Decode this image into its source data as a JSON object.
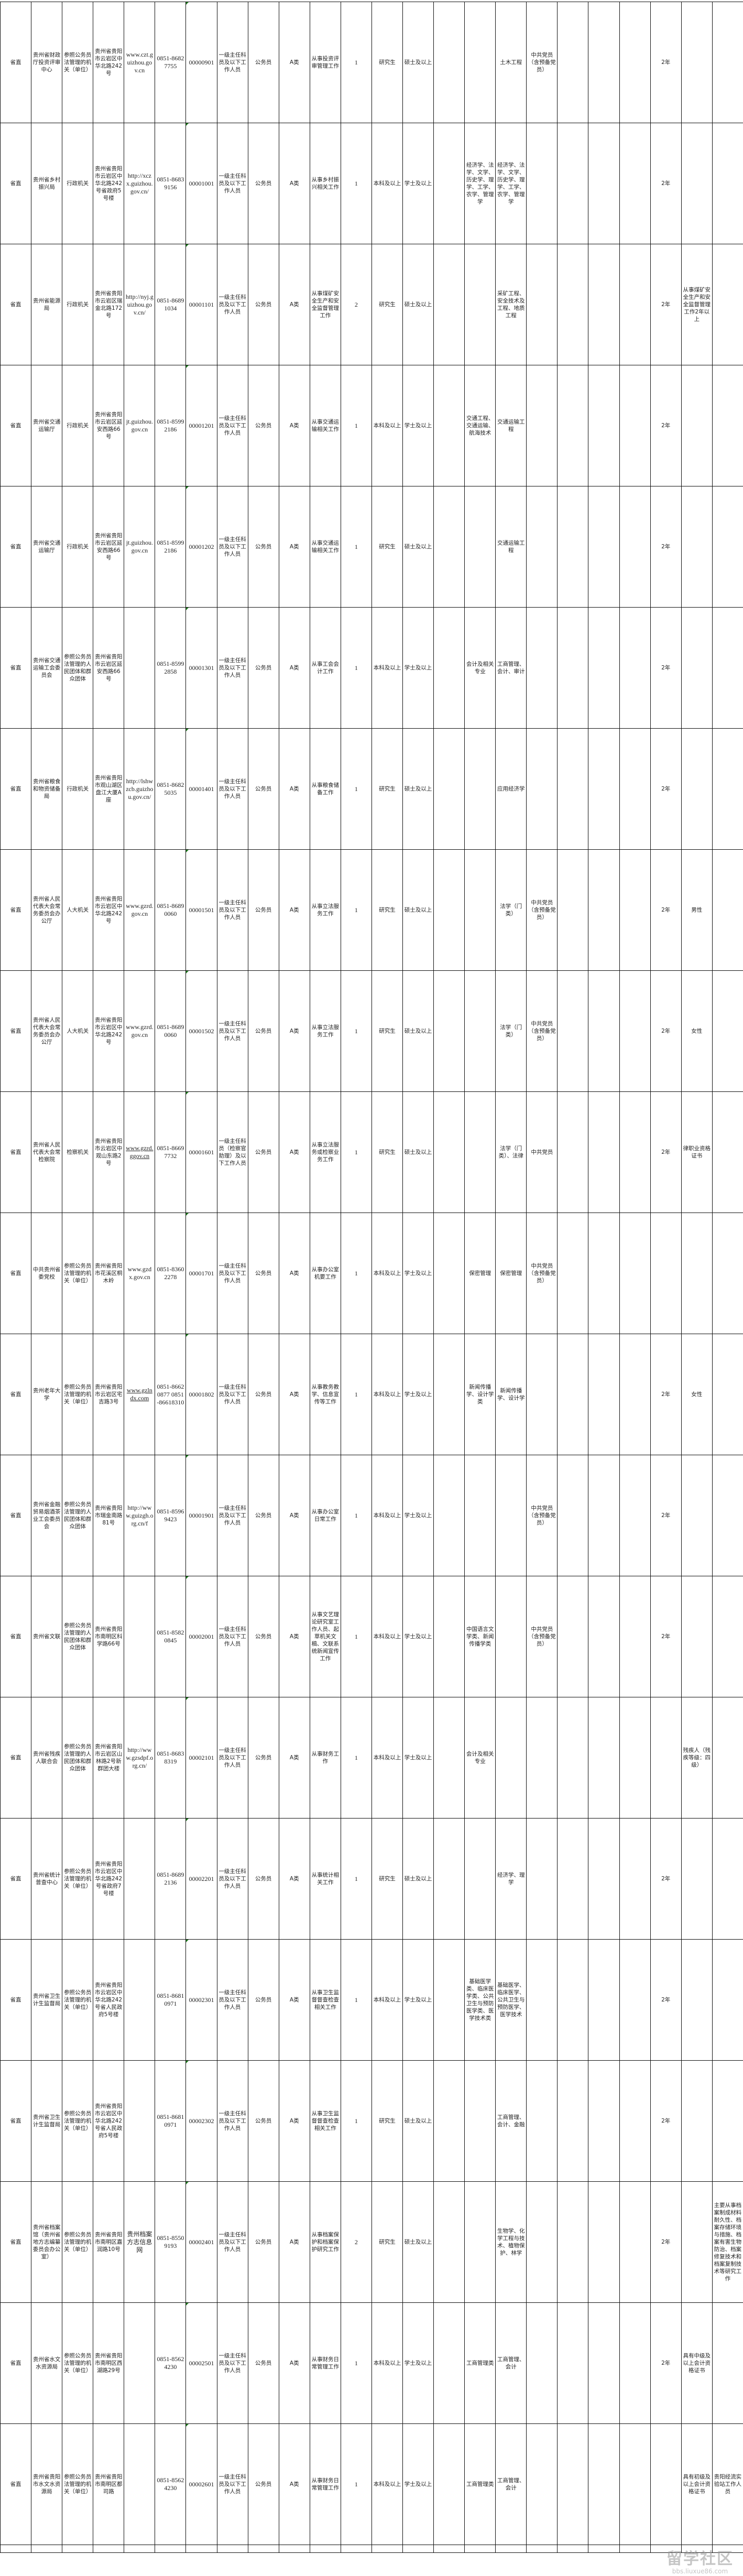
{
  "rows": [
    [
      "省直",
      "贵州省财政厅投资评审中心",
      "参照公务员法管理的机关（单位）",
      "贵州省贵阳市云岩区中华北路242号",
      "www.czt.guizhou.gov.cn",
      "0851-86827755",
      "00000901",
      "一级主任科员及以下工作人员",
      "公务员",
      "A类",
      "从事投资评审管理工作",
      "1",
      "研究生",
      "硕士及以上",
      "",
      "",
      "土木工程",
      "中共党员（含预备党员）",
      "",
      "",
      "",
      "2年",
      "",
      ""
    ],
    [
      "省直",
      "贵州省乡村振兴局",
      "行政机关",
      "贵州省贵阳市云岩区中华北路242号省政府5号楼",
      "http://xczx.guizhou.gov.cn/",
      "0851-86839156",
      "00001001",
      "一级主任科员及以下工作人员",
      "公务员",
      "A类",
      "从事乡村振兴相关工作",
      "1",
      "本科及以上",
      "学士及以上",
      "",
      "经济学、法学、文学、历史学、理学、工学、农学、管理学",
      "经济学、法学、文学、历史学、理学、工学、农学、管理学",
      "",
      "",
      "",
      "",
      "2年",
      "",
      ""
    ],
    [
      "省直",
      "贵州省能源局",
      "行政机关",
      "贵州省贵阳市云岩区瑞金北路172号",
      "http://nyj.guizhou.gov.cn/",
      "0851-86891034",
      "00001101",
      "一级主任科员及以下工作人员",
      "公务员",
      "A类",
      "从事煤矿安全生产和安全监督管理工作",
      "2",
      "研究生",
      "硕士及以上",
      "",
      "",
      "采矿工程、安全技术及工程、地质工程",
      "",
      "",
      "",
      "",
      "2年",
      "从事煤矿安全生产和安全监督管理工作2年以上",
      ""
    ],
    [
      "省直",
      "贵州省交通运输厅",
      "行政机关",
      "贵州省贵阳市云岩区延安西路66号",
      "jt.guizhou.gov.cn",
      "0851-85992186",
      "00001201",
      "一级主任科员及以下工作人员",
      "公务员",
      "A类",
      "从事交通运输相关工作",
      "1",
      "本科及以上",
      "学士及以上",
      "",
      "交通工程、交通运输、航海技术",
      "交通运输工程",
      "",
      "",
      "",
      "",
      "2年",
      "",
      ""
    ],
    [
      "省直",
      "贵州省交通运输厅",
      "行政机关",
      "贵州省贵阳市云岩区延安西路66号",
      "jt.guizhou.gov.cn",
      "0851-85992186",
      "00001202",
      "一级主任科员及以下工作人员",
      "公务员",
      "A类",
      "从事交通运输相关工作",
      "1",
      "研究生",
      "硕士及以上",
      "",
      "",
      "交通运输工程",
      "",
      "",
      "",
      "",
      "2年",
      "",
      ""
    ],
    [
      "省直",
      "贵州省交通运输工会委员会",
      "参照公务员法管理的人民团体和群众团体",
      "贵州省贵阳市云岩区延安西路66号",
      "",
      "0851-85992858",
      "00001301",
      "一级主任科员及以下工作人员",
      "公务员",
      "A类",
      "从事工会会计工作",
      "1",
      "本科及以上",
      "学士及以上",
      "",
      "会计及相关专业",
      "工商管理、会计、审计",
      "",
      "",
      "",
      "",
      "2年",
      "",
      ""
    ],
    [
      "省直",
      "贵州省粮食和物资储备局",
      "行政机关",
      "贵州省贵阳市观山湖区盘江大厦A座",
      "http://lshwzcb.guizhou.gov.cn/",
      "0851-86825035",
      "00001401",
      "一级主任科员及以下工作人员",
      "公务员",
      "A类",
      "从事粮食储备工作",
      "1",
      "研究生",
      "硕士及以上",
      "",
      "",
      "应用经济学",
      "",
      "",
      "",
      "",
      "2年",
      "",
      ""
    ],
    [
      "省直",
      "贵州省人民代表大会常务委员会办公厅",
      "人大机关",
      "贵州省贵阳市云岩区中华北路242号",
      "www.gzrd.gov.cn",
      "0851-86890060",
      "00001501",
      "一级主任科员及以下工作人员",
      "公务员",
      "A类",
      "从事立法服务工作",
      "1",
      "研究生",
      "硕士及以上",
      "",
      "",
      "法学（门类）",
      "中共党员（含预备党员）",
      "",
      "",
      "",
      "2年",
      "男性",
      ""
    ],
    [
      "省直",
      "贵州省人民代表大会常务委员会办公厅",
      "人大机关",
      "贵州省贵阳市云岩区中华北路242号",
      "www.gzrd.gov.cn",
      "0851-86890060",
      "00001502",
      "一级主任科员及以下工作人员",
      "公务员",
      "A类",
      "从事立法服务工作",
      "1",
      "研究生",
      "硕士及以上",
      "",
      "",
      "法学（门类）",
      "中共党员（含预备党员）",
      "",
      "",
      "",
      "2年",
      "女性",
      ""
    ],
    [
      "省直",
      "贵州省人民代表大会常检察院",
      "检察机关",
      "贵州省贵阳市云岩区中观山东路2号",
      "www.gzrd.ggov.cn",
      "0851-86697732",
      "00001601",
      "一级主任科员（检察官助理）及以下工作人员",
      "公务员",
      "A类",
      "从事立法服务或检察业务工作",
      "1",
      "研究生",
      "硕士及以上",
      "",
      "",
      "法学（门类）、法律",
      "中共党员",
      "",
      "",
      "",
      "2年",
      "律职业资格证书",
      ""
    ],
    [
      "省直",
      "中共贵州省委党校",
      "参照公务员法管理的机关（单位）",
      "贵州省贵阳市花溪区桐木岭",
      "www.gzdx.gov.cn",
      "0851-83602278",
      "00001701",
      "一级主任科员及以下工作人员",
      "公务员",
      "A类",
      "从事办公室机要工作",
      "1",
      "本科及以上",
      "学士及以上",
      "",
      "保密管理",
      "保密管理",
      "中共党员（含预备党员）",
      "",
      "",
      "",
      "",
      "",
      ""
    ],
    [
      "省直",
      "贵州老年大学",
      "参照公务员法管理的机关（单位）",
      "贵州省贵阳市云岩区宅吉路3号",
      "www.gzlndx.com",
      "0851-86620877 0851-86618310",
      "00001802",
      "一级主任科员及以下工作人员",
      "公务员",
      "A类",
      "从事教务教学、信息宣传等工作",
      "1",
      "本科及以上",
      "学士及以上",
      "",
      "新闻传播学、设计学类",
      "新闻传播学、设计学",
      "",
      "",
      "",
      "",
      "2年",
      "女性",
      ""
    ],
    [
      "省直",
      "贵州省金融贸易烟酒茶业工会委员会",
      "参照公务员法管理的人民团体和群众团体",
      "贵州省贵阳市瑞金南路81号",
      "http://www.guizgh.org.cn/f",
      "0851-85969423",
      "00001901",
      "一级主任科员及以下工作人员",
      "公务员",
      "A类",
      "从事办公室日常工作",
      "1",
      "本科及以上",
      "学士及以上",
      "",
      "",
      "",
      "中共党员（含预备党员）",
      "",
      "",
      "",
      "2年",
      "",
      ""
    ],
    [
      "省直",
      "贵州省文联",
      "参照公务员法管理的人民团体和群众团体",
      "贵州省贵阳市南明区科学路66号",
      "",
      "0851-85820845",
      "00002001",
      "一级主任科员及以下工作人员",
      "公务员",
      "A类",
      "从事文艺理论研究室工作人员、起草机关文稿、文联系统新闻宣传工作",
      "1",
      "本科及以上",
      "学士及以上",
      "",
      "中国语言文学类、新闻传播学类",
      "",
      "中共党员（含预备党员）",
      "",
      "",
      "",
      "2年",
      "",
      ""
    ],
    [
      "省直",
      "贵州省残疾人联合会",
      "参照公务员法管理的人民团体和群众团体",
      "贵州省贵阳市云岩区山林路2号新群团大楼",
      "http://www.gzsdpf.org.cn/",
      "0851-86838319",
      "00002101",
      "一级主任科员及以下工作人员",
      "公务员",
      "A类",
      "从事财务工作",
      "1",
      "本科及以上",
      "学士及以上",
      "",
      "会计及相关专业",
      "",
      "",
      "",
      "",
      "",
      "",
      "残疾人（残疾等级：四级）",
      ""
    ],
    [
      "省直",
      "贵州省统计普查中心",
      "参照公务员法管理的机关（单位）",
      "贵州省贵阳市云岩区中华北路242号省政府7号楼",
      "",
      "0851-86892136",
      "00002201",
      "一级主任科员及以下工作人员",
      "公务员",
      "A类",
      "从事统计相关工作",
      "1",
      "研究生",
      "硕士及以上",
      "",
      "",
      "经济学、理学",
      "",
      "",
      "",
      "",
      "2年",
      "",
      ""
    ],
    [
      "省直",
      "贵州省卫生计生监督局",
      "参照公务员法管理的机关（单位）",
      "贵州省贵阳市云岩区中华北路242号省人民政府5号楼",
      "",
      "0851-86810971",
      "00002301",
      "一级主任科员及以下工作人员",
      "公务员",
      "A类",
      "从事卫生监督督查检查相关工作",
      "1",
      "本科及以上",
      "学士及以上",
      "",
      "基础医学类、临床医学类、公共卫生与预防医学类、医学技术类",
      "基础医学、临床医学、公共卫生与预防医学、医学技术",
      "",
      "",
      "",
      "",
      "2年",
      "",
      ""
    ],
    [
      "省直",
      "贵州省卫生计生监督局",
      "参照公务员法管理的机关（单位）",
      "贵州省贵阳市云岩区中华北路242号省人民政府5号楼",
      "",
      "0851-86810971",
      "00002302",
      "一级主任科员及以下工作人员",
      "公务员",
      "A类",
      "从事卫生监督督查检查相关工作",
      "1",
      "研究生",
      "硕士及以上",
      "",
      "",
      "工商管理、会计、金融",
      "",
      "",
      "",
      "",
      "2年",
      "",
      ""
    ],
    [
      "省直",
      "贵州省档案馆（贵州省地方志编纂委员会办公室）",
      "参照公务员法管理的机关（单位）",
      "贵州省贵阳市南明区嘉润路10号",
      "贵州档案方志信息网",
      "0851-85509193",
      "00002401",
      "一级主任科员及以下工作人员",
      "公务员",
      "A类",
      "从事档案保护和档案保护研究工作",
      "2",
      "研究生",
      "硕士及以上",
      "",
      "",
      "生物学、化学工程与技术、植物保护、林学",
      "",
      "",
      "",
      "",
      "2年",
      "",
      "主要从事档案制成材料耐久性、档案存储环境与措施、档案有害生物防治、档案修复技术和档案复制技术等研究工作"
    ],
    [
      "省直",
      "贵州省水文水资源局",
      "参照公务员法管理的机关（单位）",
      "贵州省贵阳市南明区西湖路29号",
      "",
      "0851-85624230",
      "00002501",
      "一级主任科员及以下工作人员",
      "公务员",
      "A类",
      "从事财务日常管理工作",
      "1",
      "本科及以上",
      "学士及以上",
      "",
      "工商管理类",
      "工商管理、会计",
      "",
      "",
      "",
      "",
      "2年",
      "具有中级及以上会计资格证书",
      ""
    ],
    [
      "省直",
      "贵州省贵阳市水文水资源局",
      "参照公务员法管理的机关（单位）",
      "贵州省贵阳市南明区都司路",
      "",
      "0851-85624230",
      "00002601",
      "一级主任科员及以下工作人员",
      "公务员",
      "A类",
      "从事财务日常管理工作",
      "1",
      "本科及以上",
      "学士及以上",
      "",
      "工商管理类",
      "工商管理、会计",
      "",
      "",
      "",
      "",
      "",
      "具有初级及以上会计资格证书",
      "贵阳经流实验站工作人员"
    ]
  ],
  "underlined_website_rows": [
    9,
    11
  ],
  "watermark": {
    "title": "留学社区",
    "url": "bbs.liuxue86.com"
  },
  "colors": {
    "grid": "#111111",
    "comment_marker": "#1d7a1d"
  }
}
